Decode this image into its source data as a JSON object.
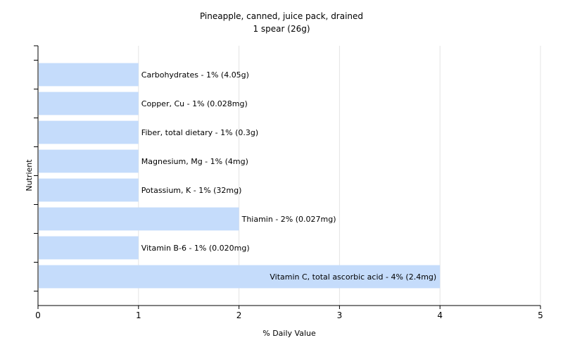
{
  "chart_data": {
    "type": "bar",
    "orientation": "horizontal",
    "title": "Pineapple, canned, juice pack, drained",
    "subtitle": "1 spear (26g)",
    "xlabel": "% Daily Value",
    "ylabel": "Nutrient",
    "xlim": [
      0,
      5
    ],
    "xticks": [
      "0",
      "1",
      "2",
      "3",
      "4",
      "5"
    ],
    "grid": true,
    "legend": "none",
    "bar_color": "#c5dcfb",
    "categories": [
      "Carbohydrates",
      "Copper, Cu",
      "Fiber, total dietary",
      "Magnesium, Mg",
      "Potassium, K",
      "Thiamin",
      "Vitamin B-6",
      "Vitamin C, total ascorbic acid"
    ],
    "values": [
      1,
      1,
      1,
      1,
      1,
      2,
      1,
      4
    ],
    "labels": [
      "Carbohydrates - 1% (4.05g)",
      "Copper, Cu - 1% (0.028mg)",
      "Fiber, total dietary - 1% (0.3g)",
      "Magnesium, Mg - 1% (4mg)",
      "Potassium, K - 1% (32mg)",
      "Thiamin - 2% (0.027mg)",
      "Vitamin B-6 - 1% (0.020mg)",
      "Vitamin C, total ascorbic acid - 4% (2.4mg)"
    ]
  }
}
